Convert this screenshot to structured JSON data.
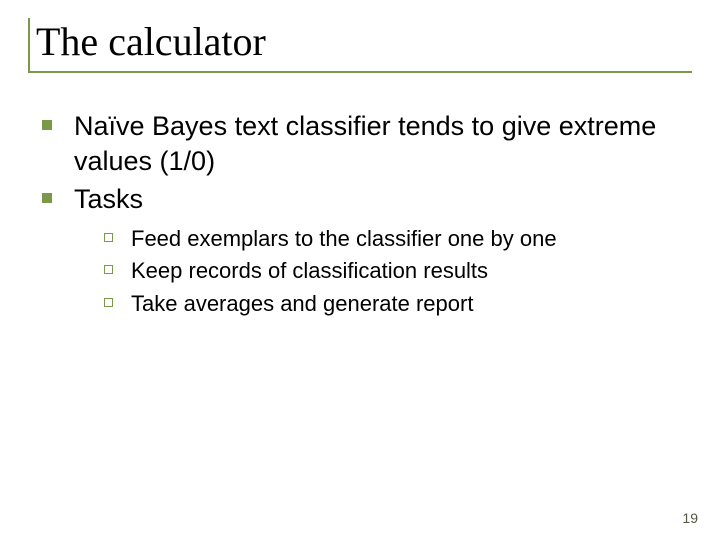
{
  "slide": {
    "title": "The calculator",
    "title_fontsize": 40,
    "title_color": "#000000",
    "title_rule_color": "#7a9a4a",
    "body_color": "#000000",
    "level1_fontsize": 27,
    "level1_bullet_color": "#7a9a4a",
    "level2_fontsize": 22,
    "level2_bullet_border_color": "#7a9a4a",
    "bullets": [
      {
        "text": "Naïve Bayes text classifier tends to give extreme values (1/0)"
      },
      {
        "text": "Tasks",
        "children": [
          {
            "text": "Feed exemplars to the classifier one by one"
          },
          {
            "text": "Keep records of classification results"
          },
          {
            "text": "Take averages and generate report"
          }
        ]
      }
    ],
    "page_number": "19",
    "page_number_fontsize": 14,
    "page_number_color": "#555544"
  }
}
